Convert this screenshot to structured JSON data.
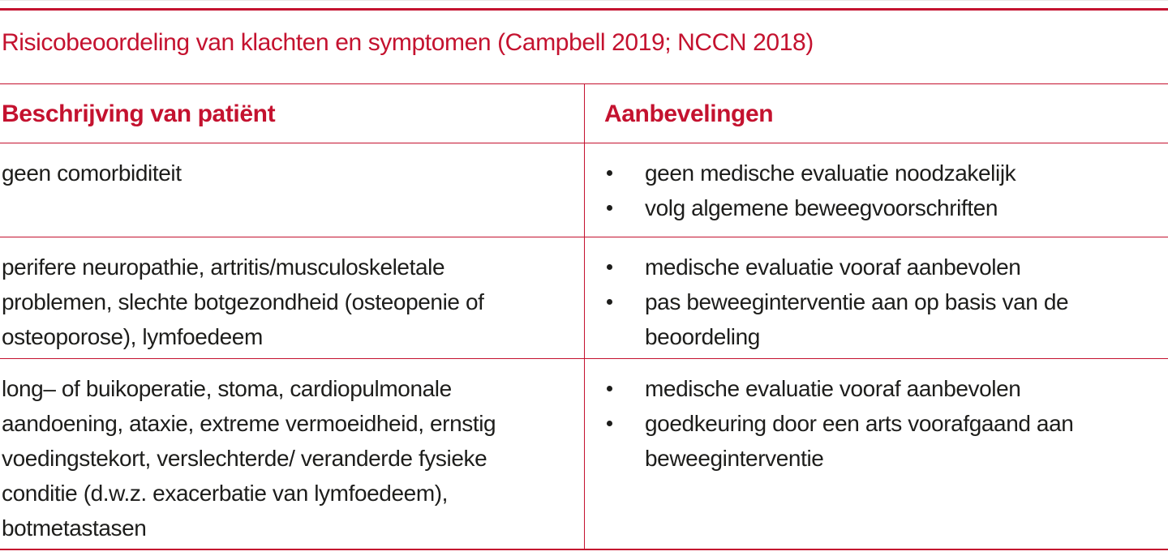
{
  "page": {
    "title": "Risicobeoordeling van klachten en symptomen (Campbell 2019; NCCN 2018)"
  },
  "colors": {
    "accent_red": "#c4122f",
    "body_text": "#1d1d1b",
    "background": "#ffffff"
  },
  "table": {
    "headers": {
      "description": "Beschrijving van patiënt",
      "recommendations": "Aanbevelingen"
    },
    "rows": [
      {
        "description": "geen comorbiditeit",
        "recommendations": [
          "geen medische evaluatie noodzakelijk",
          "volg algemene beweegvoorschriften"
        ]
      },
      {
        "description": "perifere neuropathie, artritis/musculoskeletale\nproblemen, slechte botgezondheid (osteopenie of\nosteoporose), lymfoedeem",
        "recommendations": [
          "medische evaluatie vooraf aanbevolen",
          "pas beweeginterventie aan op basis van de\nbeoordeling"
        ]
      },
      {
        "description": "long– of buikoperatie, stoma, cardiopulmonale\naandoening, ataxie, extreme vermoeidheid, ernstig\nvoedingstekort, verslechterde/ veranderde fysieke\nconditie (d.w.z. exacerbatie van lymfoedeem),\nbotmetastasen",
        "recommendations": [
          "medische evaluatie vooraf aanbevolen",
          "goedkeuring door een arts voorafgaand aan\nbeweeginterventie"
        ]
      }
    ]
  }
}
